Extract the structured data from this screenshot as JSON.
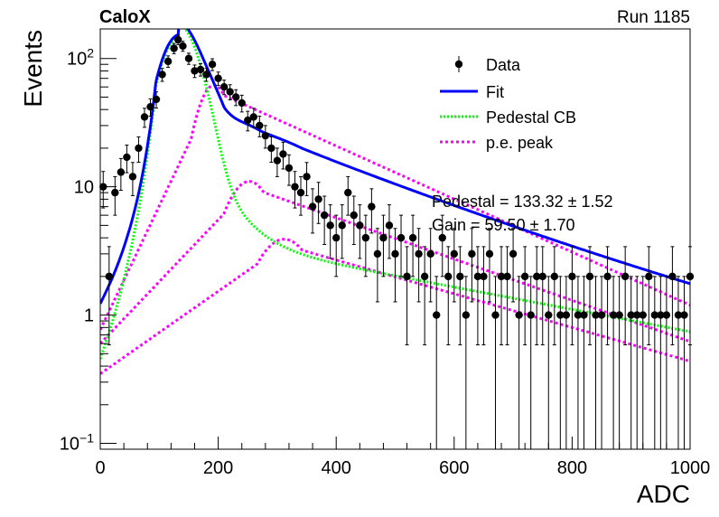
{
  "header": {
    "experiment": "CaloX",
    "run": "Run 1185"
  },
  "fit_text": {
    "pedestal": "Pedestal = 133.32 ± 1.52",
    "gain": "Gain = 59.50 ± 1.70"
  },
  "legend": [
    {
      "label": "Data",
      "style": "marker",
      "color": "#000000"
    },
    {
      "label": "Fit",
      "style": "solid",
      "color": "#0000ff"
    },
    {
      "label": "Pedestal CB",
      "style": "dotted",
      "color": "#00ff00"
    },
    {
      "label": "p.e. peak",
      "style": "dashed",
      "color": "#ff00ff"
    }
  ],
  "chart_data": {
    "type": "scatter",
    "xlabel": "ADC",
    "ylabel": "Events",
    "xlim": [
      0,
      1000
    ],
    "ylim": [
      0.09,
      170
    ],
    "y_scale": "log",
    "grid": false,
    "legend_position": "top-right",
    "x_ticks": [
      "0",
      "200",
      "400",
      "600",
      "800",
      "1000"
    ],
    "y_ticks": [
      {
        "value": 0.1,
        "base": "10",
        "exp": "−1"
      },
      {
        "value": 1,
        "label": "1"
      },
      {
        "value": 10,
        "label": "10"
      },
      {
        "value": 100,
        "base": "10",
        "exp": "2"
      }
    ],
    "series": [
      {
        "name": "Data",
        "x": [
          5,
          15,
          25,
          35,
          45,
          55,
          65,
          75,
          85,
          95,
          105,
          115,
          125,
          132,
          140,
          150,
          160,
          170,
          180,
          190,
          200,
          210,
          220,
          230,
          240,
          250,
          260,
          270,
          280,
          290,
          300,
          310,
          320,
          330,
          340,
          350,
          360,
          370,
          380,
          390,
          400,
          410,
          420,
          430,
          440,
          450,
          460,
          470,
          480,
          490,
          500,
          510,
          520,
          530,
          540,
          550,
          560,
          570,
          580,
          590,
          600,
          610,
          620,
          630,
          640,
          650,
          660,
          670,
          680,
          690,
          700,
          710,
          720,
          730,
          740,
          750,
          760,
          770,
          780,
          790,
          800,
          810,
          820,
          830,
          840,
          850,
          860,
          870,
          880,
          890,
          900,
          910,
          920,
          930,
          940,
          950,
          960,
          970,
          980,
          990,
          1000
        ],
        "y": [
          10,
          2,
          9,
          13,
          17,
          12,
          20,
          35,
          42,
          48,
          75,
          95,
          120,
          140,
          125,
          100,
          80,
          82,
          75,
          90,
          70,
          60,
          55,
          50,
          45,
          33,
          35,
          30,
          25,
          20,
          16,
          18,
          14,
          10,
          9,
          12,
          7,
          8,
          6,
          5,
          4,
          5,
          9,
          6,
          5,
          4,
          7,
          3,
          4,
          5,
          3,
          4,
          2,
          4,
          3,
          2,
          3,
          1,
          4,
          2,
          3,
          2,
          1,
          3,
          2,
          2,
          3,
          1,
          2,
          2,
          3,
          1,
          2,
          1,
          2,
          2,
          1,
          2,
          1,
          1,
          2,
          1,
          1,
          2,
          1,
          1,
          2,
          1,
          1,
          2,
          1,
          1,
          1,
          2,
          1,
          1,
          1,
          2,
          1,
          1,
          2
        ],
        "color": "#000000"
      }
    ]
  }
}
